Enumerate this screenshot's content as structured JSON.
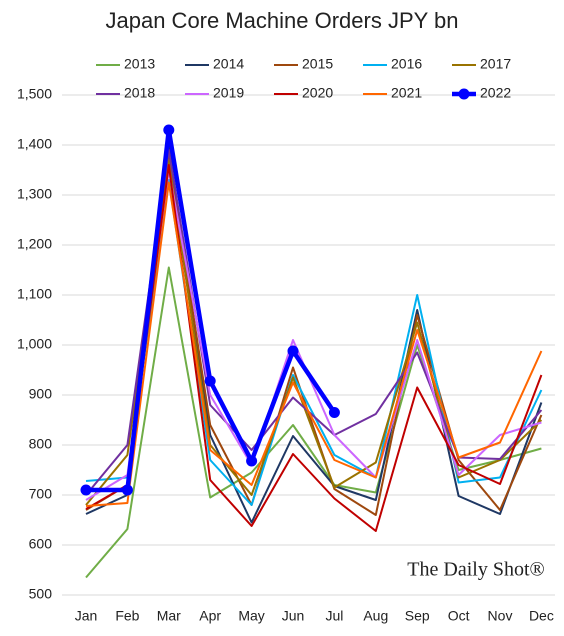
{
  "chart_data": {
    "type": "line",
    "title": "Japan Core Machine Orders JPY bn",
    "watermark": "The Daily Shot®",
    "categories": [
      "Jan",
      "Feb",
      "Mar",
      "Apr",
      "May",
      "Jun",
      "Jul",
      "Aug",
      "Sep",
      "Oct",
      "Nov",
      "Dec"
    ],
    "ylim": [
      500,
      1500
    ],
    "yticks": [
      500,
      600,
      700,
      800,
      900,
      {
        "value": 1000,
        "label": "1,000"
      },
      {
        "value": 1100,
        "label": "1,100"
      },
      {
        "value": 1200,
        "label": "1,200"
      },
      {
        "value": 1300,
        "label": "1,300"
      },
      {
        "value": 1400,
        "label": "1,400"
      },
      {
        "value": 1500,
        "label": "1,500"
      }
    ],
    "grid": true,
    "series": [
      {
        "name": "2013",
        "color": "#70ad47",
        "values": [
          535,
          632,
          1155,
          695,
          745,
          840,
          720,
          705,
          1000,
          750,
          770,
          793
        ]
      },
      {
        "name": "2014",
        "color": "#1f3864",
        "values": [
          662,
          700,
          1400,
          820,
          645,
          818,
          718,
          690,
          1070,
          698,
          662,
          885
        ]
      },
      {
        "name": "2015",
        "color": "#9e480e",
        "values": [
          670,
          720,
          1380,
          840,
          680,
          955,
          712,
          660,
          1060,
          770,
          670,
          860
        ]
      },
      {
        "name": "2016",
        "color": "#00b0f0",
        "values": [
          728,
          735,
          1330,
          770,
          680,
          940,
          780,
          735,
          1100,
          725,
          735,
          910
        ]
      },
      {
        "name": "2017",
        "color": "#997300",
        "values": [
          680,
          780,
          1370,
          800,
          700,
          935,
          715,
          765,
          1045,
          735,
          770,
          850
        ]
      },
      {
        "name": "2018",
        "color": "#7030a0",
        "values": [
          700,
          800,
          1390,
          880,
          790,
          895,
          820,
          862,
          985,
          775,
          772,
          870
        ]
      },
      {
        "name": "2019",
        "color": "#cc66ff",
        "values": [
          690,
          740,
          1350,
          900,
          760,
          1010,
          820,
          735,
          1010,
          740,
          820,
          845
        ]
      },
      {
        "name": "2020",
        "color": "#c00000",
        "values": [
          672,
          720,
          1360,
          730,
          638,
          782,
          693,
          628,
          915,
          760,
          722,
          940
        ]
      },
      {
        "name": "2021",
        "color": "#ff6600",
        "values": [
          678,
          684,
          1325,
          790,
          720,
          925,
          770,
          735,
          1030,
          775,
          805,
          988
        ]
      },
      {
        "name": "2022",
        "color": "#0000ff",
        "values": [
          710,
          710,
          1430,
          928,
          768,
          988,
          865,
          null,
          null,
          null,
          null,
          null
        ]
      }
    ]
  }
}
